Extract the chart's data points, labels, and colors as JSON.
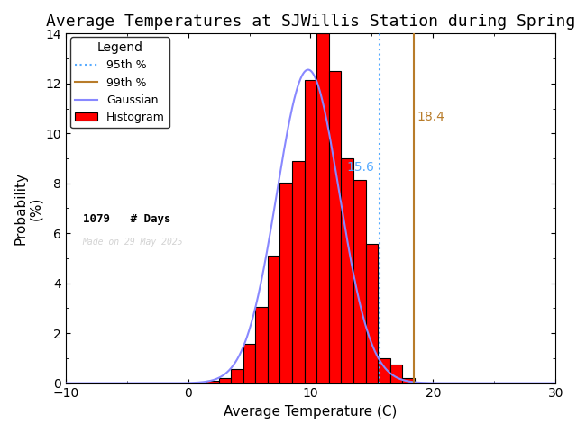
{
  "title": "Average Temperatures at SJWillis Station during Spring",
  "xlabel": "Average Temperature (C)",
  "ylabel": "Probability\n(%)",
  "xlim": [
    -10,
    30
  ],
  "ylim": [
    0,
    14
  ],
  "bin_centers": [
    2,
    3,
    4,
    5,
    6,
    7,
    8,
    9,
    10,
    11,
    12,
    13,
    14,
    15,
    16,
    17,
    18
  ],
  "bin_heights": [
    0.09,
    0.19,
    0.56,
    1.57,
    3.06,
    5.1,
    8.03,
    8.9,
    12.14,
    14.0,
    12.51,
    9.0,
    8.14,
    5.56,
    1.0,
    0.74,
    0.19
  ],
  "bin_width": 1,
  "gaussian_mean": 9.8,
  "gaussian_std": 2.55,
  "gaussian_peak": 12.55,
  "p95": 15.6,
  "p99": 18.4,
  "n_days": 1079,
  "made_on": "Made on 29 May 2025",
  "hist_color": "red",
  "hist_edge_color": "black",
  "gaussian_color": "#8888ff",
  "p95_color": "#55aaff",
  "p99_color": "#b87c2a",
  "p95_label": "95th %",
  "p99_label": "99th %",
  "gaussian_label": "Gaussian",
  "hist_label": "Histogram",
  "background_color": "white",
  "title_fontsize": 13,
  "axis_fontsize": 11,
  "tick_fontsize": 10
}
